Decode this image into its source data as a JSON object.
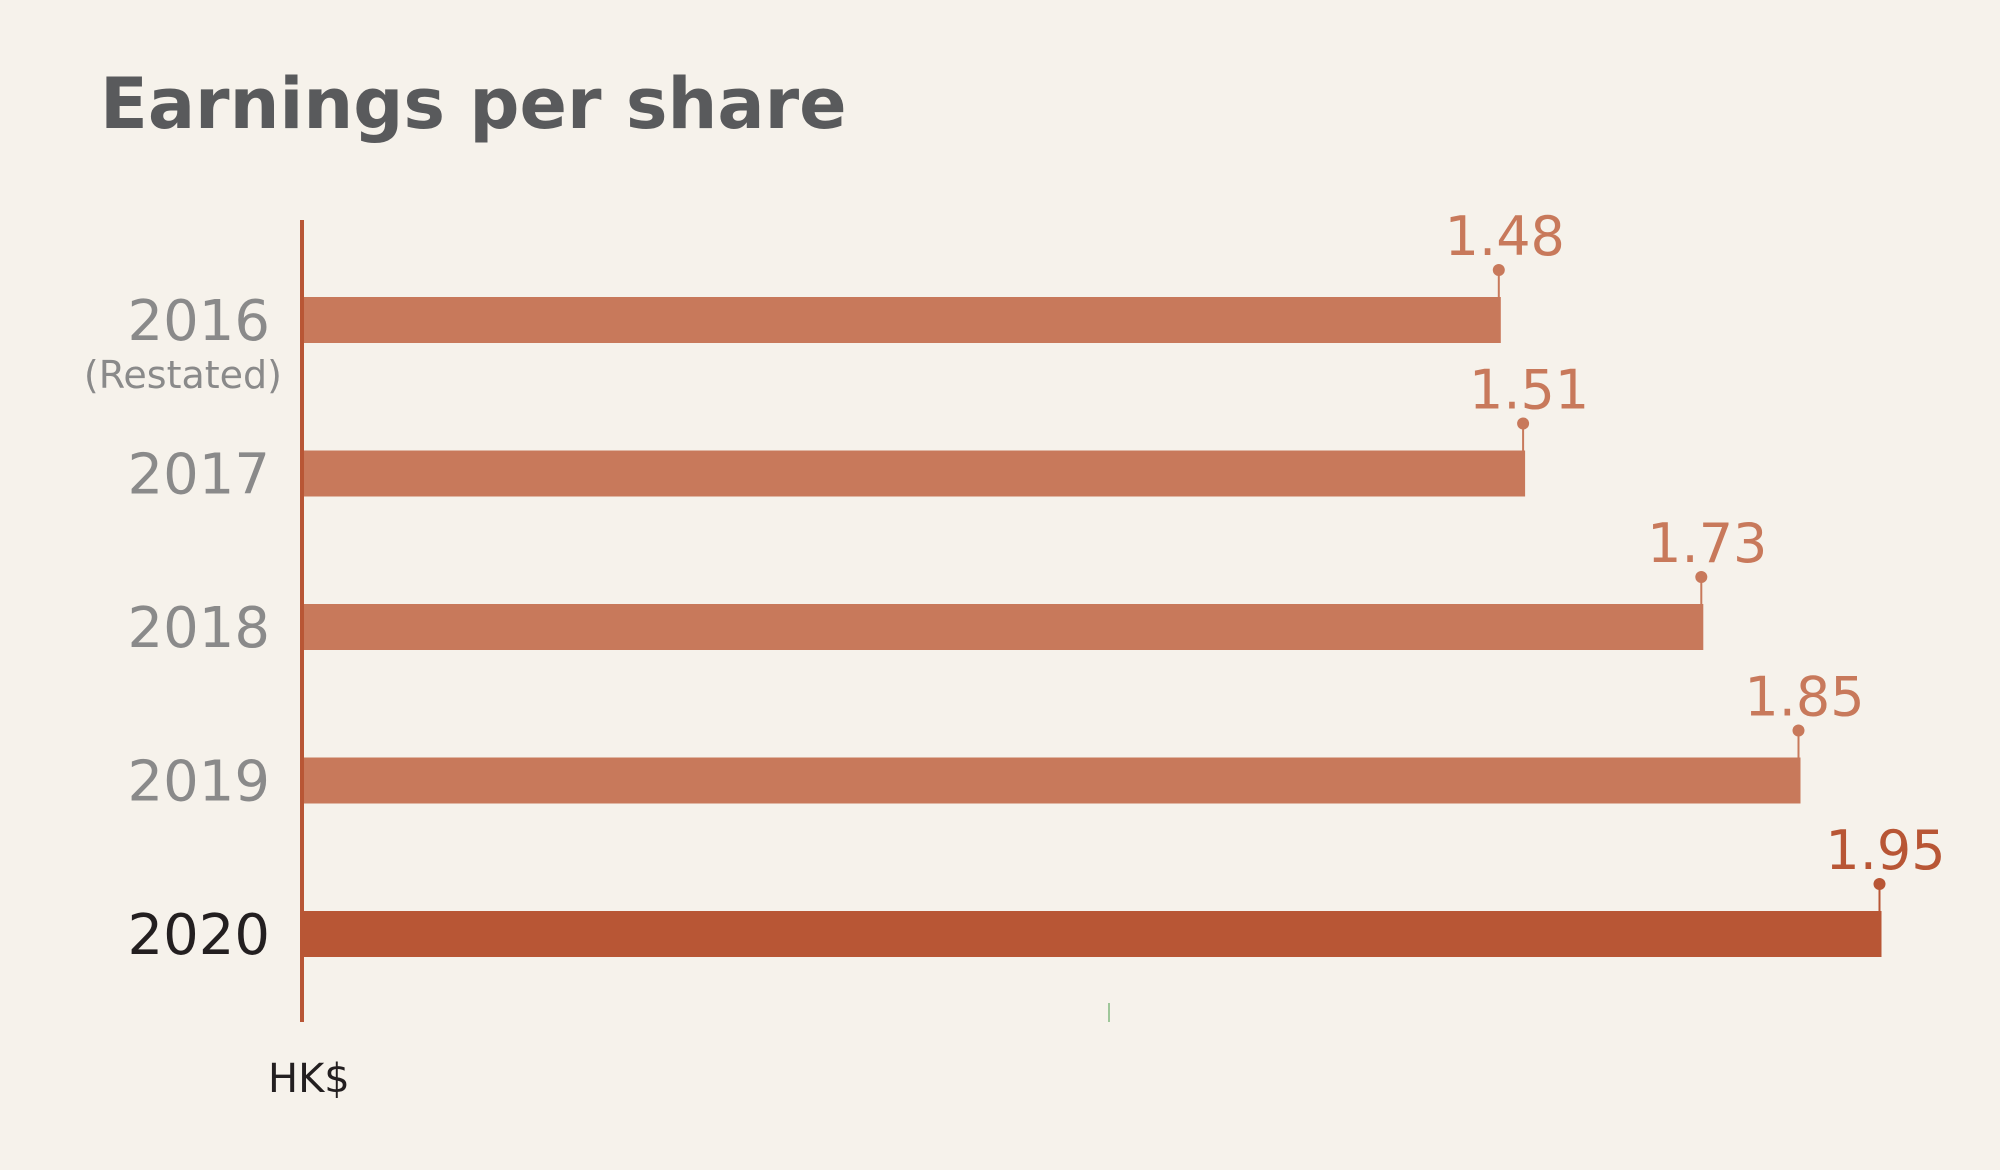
{
  "chart_data": {
    "type": "bar",
    "orientation": "horizontal",
    "title": "Earnings per share",
    "unit": "HK$",
    "categories": [
      "2016",
      "2017",
      "2018",
      "2019",
      "2020"
    ],
    "category_notes": [
      "(Restated)",
      "",
      "",
      "",
      ""
    ],
    "values": [
      1.48,
      1.51,
      1.73,
      1.85,
      1.95
    ],
    "value_labels": [
      "1.48",
      "1.51",
      "1.73",
      "1.85",
      "1.95"
    ],
    "highlight_index": 4,
    "xlim": [
      0,
      2.1
    ],
    "grid": false,
    "legend": "none"
  },
  "colors": {
    "bar": "#c8795b",
    "bar_highlight": "#b85635",
    "axis": "#b85635",
    "label": "#8a8a8a",
    "label_highlight": "#231f20",
    "title": "#595a5c",
    "background": "#f6f2eb"
  }
}
